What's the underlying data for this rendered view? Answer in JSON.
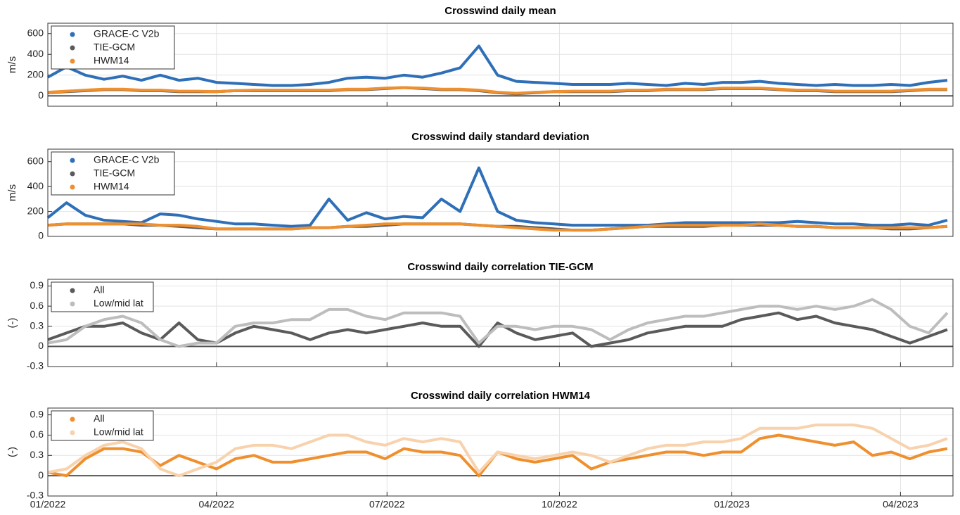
{
  "chart_data": [
    {
      "type": "line",
      "title": "Crosswind daily mean",
      "y_label": "m/s",
      "legend": "upper left",
      "grid": true,
      "x": [
        0,
        10,
        20,
        30,
        40,
        50,
        60,
        70,
        80,
        90,
        100,
        110,
        120,
        130,
        140,
        150,
        160,
        170,
        180,
        190,
        200,
        210,
        220,
        230,
        240,
        250,
        260,
        270,
        280,
        290,
        300,
        310,
        320,
        330,
        340,
        350,
        360,
        370,
        380,
        390,
        400,
        410,
        420,
        430,
        440,
        450,
        460,
        470,
        480
      ],
      "xlim": [
        0,
        483
      ],
      "xticks": [
        0,
        90,
        181,
        273,
        365,
        455
      ],
      "ylim": [
        -100,
        700
      ],
      "yticks": [
        0,
        200,
        400,
        600
      ],
      "series": [
        {
          "name": "GRACE-C V2b",
          "color": "#2e6fb8",
          "values": [
            180,
            280,
            200,
            160,
            190,
            150,
            200,
            150,
            170,
            130,
            120,
            110,
            100,
            100,
            110,
            130,
            170,
            180,
            170,
            200,
            180,
            220,
            270,
            480,
            200,
            140,
            130,
            120,
            110,
            110,
            110,
            120,
            110,
            100,
            120,
            110,
            130,
            130,
            140,
            120,
            110,
            100,
            110,
            100,
            100,
            110,
            100,
            130,
            150
          ]
        },
        {
          "name": "TIE-GCM",
          "color": "#5a5a5a",
          "values": [
            30,
            40,
            50,
            60,
            60,
            50,
            50,
            40,
            40,
            40,
            50,
            50,
            50,
            50,
            50,
            50,
            60,
            60,
            70,
            80,
            70,
            60,
            60,
            50,
            30,
            20,
            30,
            40,
            40,
            40,
            40,
            50,
            50,
            60,
            60,
            60,
            70,
            70,
            70,
            60,
            50,
            50,
            40,
            40,
            40,
            40,
            50,
            60,
            60
          ]
        },
        {
          "name": "HWM14",
          "color": "#ef8f2d",
          "values": [
            35,
            45,
            55,
            65,
            65,
            55,
            55,
            45,
            45,
            40,
            50,
            55,
            55,
            55,
            55,
            55,
            65,
            65,
            75,
            80,
            75,
            65,
            65,
            55,
            35,
            25,
            35,
            40,
            45,
            45,
            45,
            55,
            55,
            65,
            65,
            65,
            75,
            75,
            75,
            65,
            55,
            55,
            45,
            45,
            45,
            45,
            55,
            65,
            65
          ]
        }
      ]
    },
    {
      "type": "line",
      "title": "Crosswind daily standard deviation",
      "y_label": "m/s",
      "legend": "upper left",
      "grid": true,
      "x": [
        0,
        10,
        20,
        30,
        40,
        50,
        60,
        70,
        80,
        90,
        100,
        110,
        120,
        130,
        140,
        150,
        160,
        170,
        180,
        190,
        200,
        210,
        220,
        230,
        240,
        250,
        260,
        270,
        280,
        290,
        300,
        310,
        320,
        330,
        340,
        350,
        360,
        370,
        380,
        390,
        400,
        410,
        420,
        430,
        440,
        450,
        460,
        470,
        480
      ],
      "xlim": [
        0,
        483
      ],
      "xticks": [
        0,
        90,
        181,
        273,
        365,
        455
      ],
      "ylim": [
        0,
        700
      ],
      "yticks": [
        0,
        200,
        400,
        600
      ],
      "series": [
        {
          "name": "GRACE-C V2b",
          "color": "#2e6fb8",
          "values": [
            150,
            270,
            170,
            130,
            120,
            110,
            180,
            170,
            140,
            120,
            100,
            100,
            90,
            80,
            90,
            300,
            130,
            190,
            140,
            160,
            150,
            300,
            200,
            550,
            200,
            130,
            110,
            100,
            90,
            90,
            90,
            90,
            90,
            100,
            110,
            110,
            110,
            110,
            110,
            110,
            120,
            110,
            100,
            100,
            90,
            90,
            100,
            90,
            130
          ]
        },
        {
          "name": "TIE-GCM",
          "color": "#5a5a5a",
          "values": [
            90,
            100,
            100,
            100,
            100,
            90,
            90,
            80,
            70,
            60,
            60,
            60,
            60,
            60,
            70,
            70,
            80,
            80,
            90,
            100,
            100,
            100,
            100,
            90,
            80,
            80,
            70,
            60,
            50,
            50,
            60,
            70,
            80,
            80,
            80,
            80,
            90,
            90,
            90,
            90,
            80,
            80,
            70,
            70,
            70,
            60,
            60,
            70,
            80
          ]
        },
        {
          "name": "HWM14",
          "color": "#ef8f2d",
          "values": [
            90,
            100,
            100,
            100,
            100,
            100,
            90,
            90,
            80,
            60,
            60,
            60,
            60,
            60,
            70,
            70,
            80,
            90,
            100,
            100,
            100,
            100,
            100,
            90,
            80,
            70,
            60,
            50,
            50,
            50,
            60,
            70,
            80,
            90,
            90,
            90,
            90,
            90,
            100,
            90,
            80,
            80,
            70,
            70,
            70,
            70,
            70,
            70,
            80
          ]
        }
      ]
    },
    {
      "type": "line",
      "title": "Crosswind daily correlation TIE-GCM",
      "y_label": "(-)",
      "legend": "upper left",
      "grid": true,
      "x": [
        0,
        10,
        20,
        30,
        40,
        50,
        60,
        70,
        80,
        90,
        100,
        110,
        120,
        130,
        140,
        150,
        160,
        170,
        180,
        190,
        200,
        210,
        220,
        230,
        240,
        250,
        260,
        270,
        280,
        290,
        300,
        310,
        320,
        330,
        340,
        350,
        360,
        370,
        380,
        390,
        400,
        410,
        420,
        430,
        440,
        450,
        460,
        470,
        480
      ],
      "xlim": [
        0,
        483
      ],
      "xticks": [
        0,
        90,
        181,
        273,
        365,
        455
      ],
      "ylim": [
        -0.3,
        1
      ],
      "yticks": [
        -0.3,
        0,
        0.3,
        0.6,
        0.9
      ],
      "series": [
        {
          "name": "All",
          "color": "#5a5a5a",
          "values": [
            0.1,
            0.2,
            0.3,
            0.3,
            0.35,
            0.2,
            0.1,
            0.35,
            0.1,
            0.05,
            0.2,
            0.3,
            0.25,
            0.2,
            0.1,
            0.2,
            0.25,
            0.2,
            0.25,
            0.3,
            0.35,
            0.3,
            0.3,
            0.0,
            0.35,
            0.2,
            0.1,
            0.15,
            0.2,
            0.0,
            0.05,
            0.1,
            0.2,
            0.25,
            0.3,
            0.3,
            0.3,
            0.4,
            0.45,
            0.5,
            0.4,
            0.45,
            0.35,
            0.3,
            0.25,
            0.15,
            0.05,
            0.15,
            0.25
          ]
        },
        {
          "name": "Low/mid lat",
          "color": "#bdbdbd",
          "values": [
            0.05,
            0.1,
            0.3,
            0.4,
            0.45,
            0.35,
            0.1,
            0.0,
            0.05,
            0.05,
            0.3,
            0.35,
            0.35,
            0.4,
            0.4,
            0.55,
            0.55,
            0.45,
            0.4,
            0.5,
            0.5,
            0.5,
            0.45,
            0.05,
            0.3,
            0.3,
            0.25,
            0.3,
            0.3,
            0.25,
            0.1,
            0.25,
            0.35,
            0.4,
            0.45,
            0.45,
            0.5,
            0.55,
            0.6,
            0.6,
            0.55,
            0.6,
            0.55,
            0.6,
            0.7,
            0.55,
            0.3,
            0.2,
            0.5
          ]
        }
      ]
    },
    {
      "type": "line",
      "title": "Crosswind daily correlation HWM14",
      "y_label": "(-)",
      "legend": "upper left",
      "grid": true,
      "x": [
        0,
        10,
        20,
        30,
        40,
        50,
        60,
        70,
        80,
        90,
        100,
        110,
        120,
        130,
        140,
        150,
        160,
        170,
        180,
        190,
        200,
        210,
        220,
        230,
        240,
        250,
        260,
        270,
        280,
        290,
        300,
        310,
        320,
        330,
        340,
        350,
        360,
        370,
        380,
        390,
        400,
        410,
        420,
        430,
        440,
        450,
        460,
        470,
        480
      ],
      "xlim": [
        0,
        483
      ],
      "xticks": [
        {
          "value": 0,
          "label": "01/2022"
        },
        {
          "value": 90,
          "label": "04/2022"
        },
        {
          "value": 181,
          "label": "07/2022"
        },
        {
          "value": 273,
          "label": "10/2022"
        },
        {
          "value": 365,
          "label": "01/2023"
        },
        {
          "value": 455,
          "label": "04/2023"
        }
      ],
      "ylim": [
        -0.3,
        1
      ],
      "yticks": [
        -0.3,
        0,
        0.3,
        0.6,
        0.9
      ],
      "series": [
        {
          "name": "All",
          "color": "#ef8f2d",
          "values": [
            0.05,
            0.0,
            0.25,
            0.4,
            0.4,
            0.35,
            0.15,
            0.3,
            0.2,
            0.1,
            0.25,
            0.3,
            0.2,
            0.2,
            0.25,
            0.3,
            0.35,
            0.35,
            0.25,
            0.4,
            0.35,
            0.35,
            0.3,
            0.0,
            0.35,
            0.25,
            0.2,
            0.25,
            0.3,
            0.1,
            0.2,
            0.25,
            0.3,
            0.35,
            0.35,
            0.3,
            0.35,
            0.35,
            0.55,
            0.6,
            0.55,
            0.5,
            0.45,
            0.5,
            0.3,
            0.35,
            0.25,
            0.35,
            0.4
          ]
        },
        {
          "name": "Low/mid lat",
          "color": "#f8d2ad",
          "values": [
            0.05,
            0.1,
            0.3,
            0.45,
            0.5,
            0.4,
            0.1,
            0.0,
            0.1,
            0.2,
            0.4,
            0.45,
            0.45,
            0.4,
            0.5,
            0.6,
            0.6,
            0.5,
            0.45,
            0.55,
            0.5,
            0.55,
            0.5,
            0.05,
            0.35,
            0.3,
            0.25,
            0.3,
            0.35,
            0.3,
            0.2,
            0.3,
            0.4,
            0.45,
            0.45,
            0.5,
            0.5,
            0.55,
            0.7,
            0.7,
            0.7,
            0.75,
            0.75,
            0.75,
            0.7,
            0.55,
            0.4,
            0.45,
            0.55
          ]
        }
      ]
    }
  ]
}
